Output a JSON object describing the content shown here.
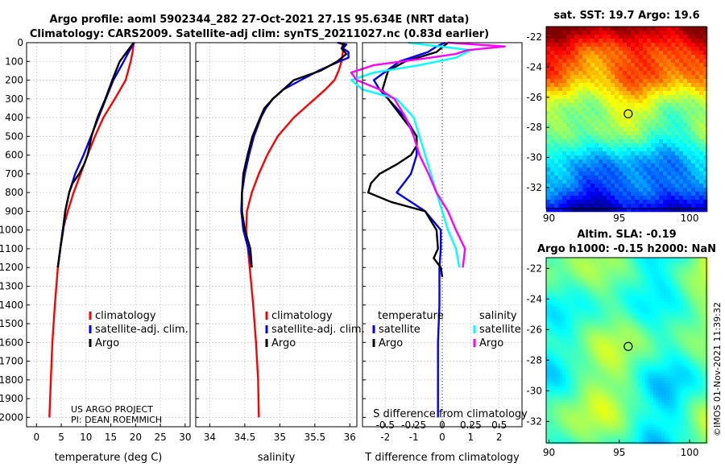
{
  "titles": {
    "line1": "Argo profile: aoml 5902344_282 27-Oct-2021 27.1S 95.634E (NRT data)",
    "line2": "Climatology: CARS2009. Satellite-adj clim: synTS_20211027.nc (0.83d earlier)",
    "map1": "sat. SST: 19.7 Argo: 19.6",
    "map2_line1": "Altim. SLA: -0.19",
    "map2_line2": "Argo h1000: -0.15 h2000: NaN"
  },
  "credits": {
    "project": "US ARGO PROJECT",
    "pi": "PI: DEAN ROEMMICH",
    "stamp": "©IMOS 01-Nov-2021 11:39:32"
  },
  "colors": {
    "climatology": "#ff0000",
    "satellite": "#0000ff",
    "argo": "#000000",
    "sat_s": "#00ffff",
    "argo_s": "#ff00ff"
  },
  "legend": {
    "climatology": "climatology",
    "satellite_clim": "satellite-adj. clim.",
    "argo": "Argo",
    "diff_temp_header": "temperature",
    "diff_sal_header": "salinity",
    "satellite": "satellite"
  },
  "chart_data": [
    {
      "type": "line",
      "id": "temperature",
      "xlabel": "temperature (deg C)",
      "ylabel": "",
      "xlim": [
        -2,
        31
      ],
      "ylim": [
        2050,
        0
      ],
      "xticks": [
        0,
        5,
        10,
        15,
        20,
        25,
        30
      ],
      "yticks": [
        0,
        100,
        200,
        300,
        400,
        500,
        600,
        700,
        800,
        900,
        1000,
        1100,
        1200,
        1300,
        1400,
        1500,
        1600,
        1700,
        1800,
        1900,
        2000
      ],
      "series": [
        {
          "name": "climatology",
          "color": "#ff0000",
          "depth": [
            0,
            50,
            100,
            200,
            300,
            400,
            500,
            600,
            700,
            800,
            900,
            1000,
            1200,
            1400,
            1600,
            1800,
            2000
          ],
          "values": [
            19.6,
            19.4,
            19.0,
            18.0,
            15.8,
            13.5,
            11.8,
            10.3,
            8.9,
            7.5,
            6.3,
            5.3,
            4.3,
            3.7,
            3.2,
            2.9,
            2.6
          ]
        },
        {
          "name": "satellite-adj. clim.",
          "color": "#0000ff",
          "depth": [
            0,
            50,
            100,
            200,
            300,
            400,
            500,
            600,
            700,
            800,
            900,
            1000,
            1200
          ],
          "values": [
            19.7,
            18.6,
            17.6,
            15.5,
            14.0,
            12.5,
            11.0,
            9.5,
            7.8,
            6.6,
            5.8,
            5.3,
            4.3
          ]
        },
        {
          "name": "Argo",
          "color": "#000000",
          "depth": [
            0,
            50,
            100,
            200,
            300,
            400,
            500,
            600,
            650,
            700,
            750,
            800,
            850,
            900,
            1000,
            1100,
            1200
          ],
          "values": [
            19.6,
            18.2,
            16.8,
            15.3,
            13.9,
            12.3,
            11.1,
            10.3,
            9.6,
            8.6,
            7.3,
            6.6,
            6.2,
            5.8,
            5.4,
            4.8,
            4.3
          ]
        }
      ]
    },
    {
      "type": "line",
      "id": "salinity",
      "xlabel": "salinity",
      "ylabel": "",
      "xlim": [
        33.8,
        36.1
      ],
      "ylim": [
        2050,
        0
      ],
      "xticks": [
        34,
        34.5,
        35,
        35.5,
        36
      ],
      "xticklabels": [
        "34",
        "34.5",
        "35",
        "35.5",
        "36"
      ],
      "yticks": [
        0,
        100,
        200,
        300,
        400,
        500,
        600,
        700,
        800,
        900,
        1000,
        1100,
        1200,
        1300,
        1400,
        1500,
        1600,
        1700,
        1800,
        1900,
        2000
      ],
      "series": [
        {
          "name": "climatology",
          "color": "#ff0000",
          "depth": [
            0,
            20,
            50,
            100,
            150,
            200,
            250,
            300,
            350,
            400,
            500,
            600,
            700,
            800,
            900,
            1000,
            1200,
            1400,
            1600,
            1800,
            2000
          ],
          "values": [
            35.88,
            35.9,
            35.9,
            35.88,
            35.84,
            35.78,
            35.65,
            35.5,
            35.35,
            35.2,
            34.97,
            34.82,
            34.7,
            34.6,
            34.53,
            34.52,
            34.57,
            34.62,
            34.66,
            34.69,
            34.7
          ]
        },
        {
          "name": "satellite-adj. clim.",
          "color": "#0000ff",
          "depth": [
            0,
            10,
            30,
            50,
            80,
            100,
            150,
            200,
            250,
            300,
            350,
            400,
            500,
            600,
            700,
            800,
            900,
            1000,
            1100,
            1200
          ],
          "values": [
            35.82,
            35.95,
            35.9,
            35.98,
            35.98,
            35.85,
            35.55,
            35.3,
            35.05,
            34.9,
            34.8,
            34.73,
            34.63,
            34.56,
            34.5,
            34.46,
            34.45,
            34.48,
            34.55,
            34.6
          ]
        },
        {
          "name": "Argo",
          "color": "#000000",
          "depth": [
            0,
            10,
            30,
            60,
            100,
            150,
            200,
            250,
            300,
            350,
            400,
            500,
            600,
            700,
            800,
            900,
            1000,
            1100,
            1200
          ],
          "values": [
            35.85,
            35.92,
            35.88,
            35.95,
            35.82,
            35.58,
            35.2,
            35.05,
            34.9,
            34.78,
            34.72,
            34.61,
            34.54,
            34.48,
            34.46,
            34.46,
            34.5,
            34.58,
            34.6
          ]
        }
      ]
    },
    {
      "type": "line",
      "id": "difference",
      "xlabel": "T difference from climatology",
      "x2label": "S difference from climatology",
      "xlim": [
        -2.8,
        2.8
      ],
      "ylim": [
        2050,
        0
      ],
      "xticks": [
        -2,
        -1,
        0,
        1,
        2
      ],
      "x2ticks": [
        -0.5,
        -0.25,
        0,
        0.25,
        0.5
      ],
      "x2ticklabels": [
        "-0.5",
        "-0.25",
        "0",
        "0.25",
        "0.5"
      ],
      "yticks": [
        0,
        100,
        200,
        300,
        400,
        500,
        600,
        700,
        800,
        900,
        1000,
        1100,
        1200,
        1300,
        1400,
        1500,
        1600,
        1700,
        1800,
        1900,
        2000
      ],
      "series": [
        {
          "name": "temperature satellite",
          "color": "#0000ff",
          "depth": [
            0,
            20,
            50,
            100,
            200,
            250,
            300,
            400,
            500,
            600,
            700,
            800,
            900,
            1000,
            1100,
            1200,
            1400,
            1600,
            1800,
            2000
          ],
          "values": [
            0.1,
            -0.2,
            -0.5,
            -1.5,
            -2.4,
            -2.2,
            -1.9,
            -1.3,
            -0.9,
            -0.9,
            -1.1,
            -1.6,
            -0.6,
            -0.05,
            -0.05,
            -0.1,
            -0.1,
            -0.15,
            -0.15,
            -0.15
          ]
        },
        {
          "name": "temperature Argo",
          "color": "#000000",
          "depth": [
            0,
            50,
            100,
            150,
            200,
            250,
            300,
            400,
            500,
            550,
            600,
            650,
            700,
            750,
            800,
            850,
            900,
            1000,
            1100,
            1150,
            1200,
            1250
          ],
          "values": [
            0.2,
            -0.2,
            -1.3,
            -1.9,
            -2.0,
            -2.1,
            -1.9,
            -1.4,
            -0.9,
            -0.9,
            -1.1,
            -1.6,
            -2.2,
            -2.5,
            -2.6,
            -1.8,
            -0.6,
            -0.2,
            -0.15,
            -0.3,
            -0.05,
            0.0
          ]
        },
        {
          "name": "salinity satellite",
          "color": "#00ffff",
          "depth": [
            0,
            40,
            80,
            120,
            160,
            200,
            250,
            300,
            400,
            500,
            600,
            700,
            800,
            900,
            1000,
            1100,
            1200
          ],
          "values": [
            -0.3,
            0.25,
            0.12,
            -0.2,
            -0.6,
            -0.8,
            -0.7,
            -0.4,
            -0.25,
            -0.2,
            -0.15,
            -0.1,
            -0.05,
            0.0,
            0.05,
            0.12,
            0.15
          ]
        },
        {
          "name": "salinity Argo",
          "color": "#ff00ff",
          "depth": [
            0,
            20,
            40,
            60,
            80,
            120,
            160,
            200,
            250,
            300,
            400,
            500,
            600,
            700,
            800,
            900,
            1000,
            1100,
            1200
          ],
          "values": [
            0.05,
            0.55,
            0.22,
            0.12,
            -0.1,
            -0.6,
            -0.8,
            -0.75,
            -0.55,
            -0.42,
            -0.32,
            -0.25,
            -0.2,
            -0.12,
            -0.05,
            0.05,
            0.12,
            0.2,
            0.18
          ]
        }
      ]
    },
    {
      "type": "heatmap",
      "id": "sst_map",
      "title": "sat. SST: 19.7 Argo: 19.6",
      "xlim": [
        89.8,
        101.2
      ],
      "ylim": [
        -33.4,
        -21.3
      ],
      "xticks": [
        90,
        95,
        100
      ],
      "yticks": [
        -22,
        -24,
        -26,
        -28,
        -30,
        -32
      ],
      "marker": {
        "lon": 95.634,
        "lat": -27.1
      }
    },
    {
      "type": "heatmap",
      "id": "sla_map",
      "title": "Altim. SLA: -0.19",
      "xlim": [
        89.8,
        101.2
      ],
      "ylim": [
        -33.4,
        -21.3
      ],
      "xticks": [
        90,
        95,
        100
      ],
      "yticks": [
        -22,
        -24,
        -26,
        -28,
        -30,
        -32
      ],
      "marker": {
        "lon": 95.634,
        "lat": -27.1
      }
    }
  ]
}
